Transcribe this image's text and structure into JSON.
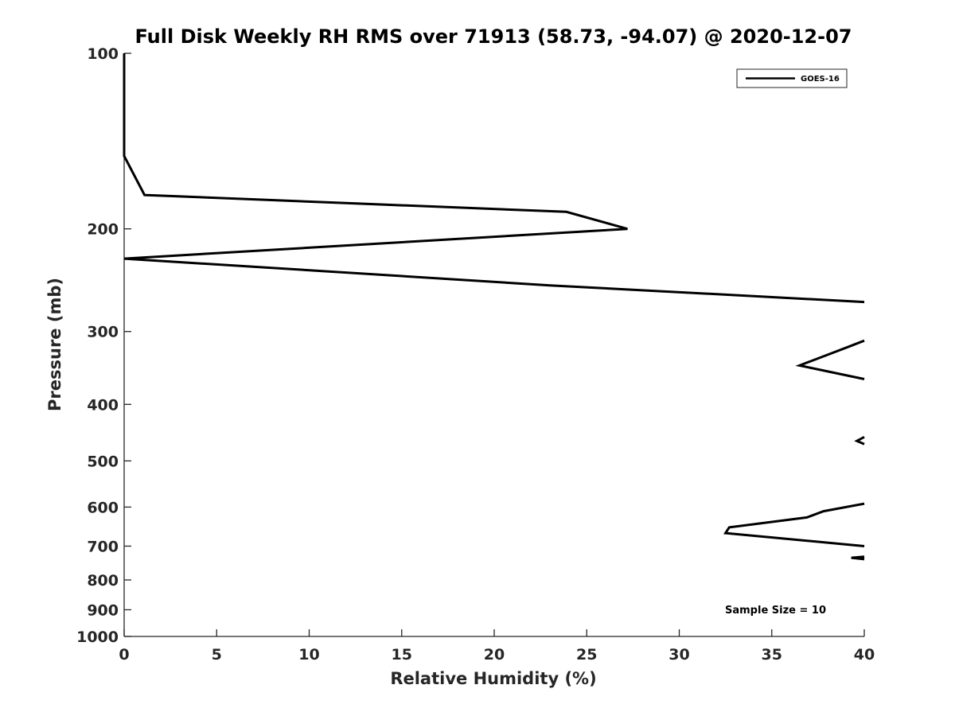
{
  "chart_data": {
    "type": "line",
    "title": "Full Disk Weekly RH RMS over 71913 (58.73, -94.07) @ 2020-12-07",
    "xlabel": "Relative Humidity (%)",
    "ylabel": "Pressure (mb)",
    "xlim": [
      0,
      40
    ],
    "ylim": [
      100,
      1000
    ],
    "y_scale": "log",
    "y_reversed": true,
    "grid": false,
    "legend_position": "top-right",
    "x_ticks": [
      0,
      5,
      10,
      15,
      20,
      25,
      30,
      35,
      40
    ],
    "y_ticks": [
      100,
      200,
      300,
      400,
      500,
      600,
      700,
      800,
      900,
      1000
    ],
    "annotation": "Sample Size = 10",
    "series": [
      {
        "name": "GOES-16",
        "color": "#000000",
        "segments": [
          [
            [
              0,
              100
            ],
            [
              0,
              125
            ],
            [
              0,
              150
            ],
            [
              1.1,
              175
            ],
            [
              23.9,
              187
            ],
            [
              27.2,
              200
            ],
            [
              0,
              225
            ],
            [
              23,
              250
            ],
            [
              40,
              267
            ]
          ],
          [
            [
              40,
              311
            ],
            [
              39.1,
              319
            ],
            [
              36.5,
              343
            ],
            [
              40,
              362
            ]
          ],
          [
            [
              40,
              455
            ],
            [
              39.6,
              462
            ],
            [
              40,
              468
            ]
          ],
          [
            [
              40,
              592
            ],
            [
              37.8,
              610
            ],
            [
              36.9,
              625
            ],
            [
              32.7,
              650
            ],
            [
              32.5,
              665
            ],
            [
              40,
              700
            ]
          ],
          [
            [
              40,
              730
            ],
            [
              39.3,
              733
            ],
            [
              40,
              737
            ]
          ]
        ]
      }
    ]
  }
}
